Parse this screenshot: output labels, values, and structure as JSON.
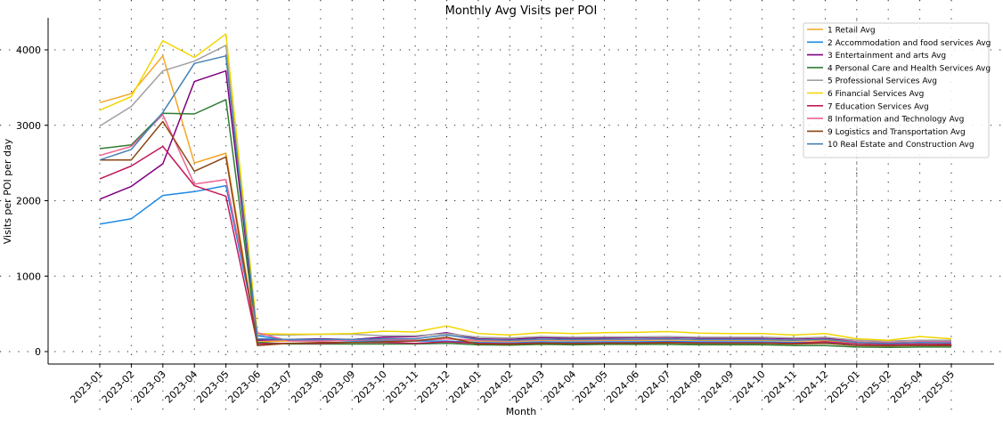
{
  "chart_data": {
    "type": "line",
    "title": "Monthly Avg Visits per POI",
    "xlabel": "Month",
    "ylabel": "Visits per POI per day",
    "categories": [
      "2023-01",
      "2023-02",
      "2023-03",
      "2023-04",
      "2023-05",
      "2023-06",
      "2023-07",
      "2023-08",
      "2023-09",
      "2023-10",
      "2023-11",
      "2023-12",
      "2024-01",
      "2024-02",
      "2024-03",
      "2024-04",
      "2024-05",
      "2024-06",
      "2024-07",
      "2024-08",
      "2024-09",
      "2024-10",
      "2024-11",
      "2024-12",
      "2025-01",
      "2025-02",
      "2025-04",
      "2025-05"
    ],
    "ylim": [
      -150,
      4400
    ],
    "yticks": [
      0,
      1000,
      2000,
      3000,
      4000
    ],
    "grid": true,
    "legend_position": "top-right",
    "vertical_reference_line_at": "2025-01",
    "series": [
      {
        "name": "1 Retail Avg",
        "color": "#f5a623",
        "values": [
          3300,
          3420,
          3920,
          2500,
          2630,
          130,
          140,
          150,
          145,
          150,
          145,
          170,
          140,
          135,
          150,
          145,
          150,
          150,
          155,
          150,
          150,
          150,
          140,
          145,
          120,
          110,
          125,
          120
        ]
      },
      {
        "name": "2 Accommodation and food services Avg",
        "color": "#1e88e5",
        "values": [
          1690,
          1760,
          2070,
          2120,
          2200,
          210,
          150,
          150,
          140,
          140,
          140,
          140,
          120,
          115,
          130,
          125,
          130,
          130,
          135,
          130,
          130,
          130,
          120,
          120,
          100,
          95,
          100,
          100
        ]
      },
      {
        "name": "3 Entertainment and arts Avg",
        "color": "#800080",
        "values": [
          2020,
          2190,
          2490,
          3580,
          3720,
          150,
          160,
          170,
          160,
          190,
          200,
          250,
          170,
          160,
          185,
          175,
          180,
          185,
          190,
          180,
          180,
          180,
          170,
          180,
          130,
          120,
          130,
          130
        ]
      },
      {
        "name": "4 Personal Care and Health Services Avg",
        "color": "#2e7d32",
        "values": [
          2690,
          2740,
          3160,
          3150,
          3340,
          120,
          100,
          100,
          100,
          100,
          100,
          110,
          90,
          85,
          95,
          90,
          95,
          95,
          95,
          90,
          90,
          90,
          80,
          80,
          60,
          55,
          60,
          60
        ]
      },
      {
        "name": "5 Professional Services Avg",
        "color": "#a0a0a0",
        "values": [
          2990,
          3250,
          3720,
          3850,
          4060,
          220,
          220,
          230,
          230,
          210,
          210,
          240,
          190,
          180,
          200,
          190,
          195,
          195,
          200,
          190,
          190,
          190,
          180,
          190,
          150,
          140,
          150,
          150
        ]
      },
      {
        "name": "6 Financial Services Avg",
        "color": "#f2d600",
        "values": [
          3200,
          3380,
          4120,
          3900,
          4210,
          240,
          230,
          230,
          240,
          270,
          260,
          340,
          240,
          220,
          250,
          240,
          250,
          255,
          265,
          245,
          240,
          240,
          220,
          240,
          170,
          150,
          200,
          170
        ]
      },
      {
        "name": "7 Education Services Avg",
        "color": "#c2185b",
        "values": [
          2290,
          2460,
          2720,
          2200,
          2060,
          100,
          110,
          110,
          120,
          120,
          110,
          130,
          110,
          105,
          115,
          110,
          115,
          115,
          120,
          115,
          115,
          115,
          110,
          130,
          100,
          90,
          100,
          95
        ]
      },
      {
        "name": "8 Information and Technology Avg",
        "color": "#f06292",
        "values": [
          2600,
          2720,
          3140,
          2220,
          2280,
          250,
          140,
          140,
          150,
          160,
          150,
          170,
          150,
          145,
          160,
          155,
          160,
          160,
          165,
          160,
          160,
          160,
          150,
          160,
          130,
          120,
          130,
          125
        ]
      },
      {
        "name": "9 Logistics and Transportation Avg",
        "color": "#8b4513",
        "values": [
          2540,
          2540,
          3050,
          2390,
          2580,
          80,
          110,
          120,
          120,
          130,
          140,
          190,
          100,
          95,
          110,
          105,
          110,
          110,
          115,
          110,
          110,
          110,
          100,
          110,
          80,
          75,
          80,
          80
        ]
      },
      {
        "name": "10 Real Estate and Construction Avg",
        "color": "#4682b4",
        "values": [
          2540,
          2680,
          3170,
          3820,
          3920,
          170,
          160,
          160,
          160,
          170,
          170,
          220,
          160,
          150,
          165,
          160,
          165,
          165,
          170,
          160,
          160,
          160,
          150,
          160,
          120,
          110,
          120,
          115
        ]
      }
    ]
  }
}
